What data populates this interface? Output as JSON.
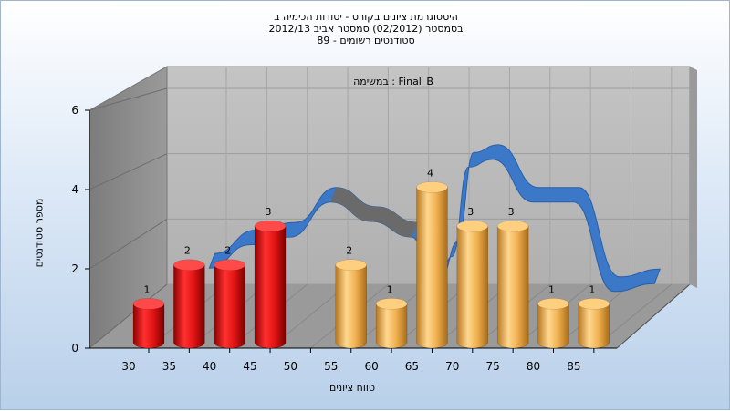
{
  "chart_data": {
    "type": "bar",
    "title_lines": [
      "היסטוגרמת ציונים בקורס - יסודות הכימיה ב",
      "בסמסטר  (02/2012)  סמסטר אביב 2012/13",
      "סטודנטים רשומים - 89"
    ],
    "subtitle": "במשימה : Final_B",
    "xlabel": "טווח ציונים",
    "ylabel": "מספר סטודנטים",
    "x_ticks": [
      "30",
      "35",
      "40",
      "45",
      "50",
      "55",
      "60",
      "65",
      "70",
      "75",
      "80",
      "85"
    ],
    "y_ticks": [
      "0",
      "2",
      "4",
      "6"
    ],
    "ylim": [
      0,
      6
    ],
    "bars": [
      {
        "x": 30,
        "value": 1,
        "label": "1",
        "color": "red"
      },
      {
        "x": 35,
        "value": 2,
        "label": "2",
        "color": "red"
      },
      {
        "x": 40,
        "value": 2,
        "label": "2",
        "color": "red"
      },
      {
        "x": 45,
        "value": 3,
        "label": "3",
        "color": "red"
      },
      {
        "x": 55,
        "value": 2,
        "label": "2",
        "color": "orange"
      },
      {
        "x": 60,
        "value": 1,
        "label": "1",
        "color": "orange"
      },
      {
        "x": 65,
        "value": 4,
        "label": "4",
        "color": "orange"
      },
      {
        "x": 70,
        "value": 3,
        "label": "3",
        "color": "orange"
      },
      {
        "x": 75,
        "value": 3,
        "label": "3",
        "color": "orange"
      },
      {
        "x": 80,
        "value": 1,
        "label": "1",
        "color": "orange"
      },
      {
        "x": 85,
        "value": 1,
        "label": "1",
        "color": "orange"
      }
    ],
    "ribbon": [
      {
        "x": 35,
        "y": 2.2
      },
      {
        "x": 40,
        "y": 2.8
      },
      {
        "x": 45,
        "y": 3.0
      },
      {
        "x": 50,
        "y": 3.9
      },
      {
        "x": 55,
        "y": 3.4
      },
      {
        "x": 60,
        "y": 3.0
      },
      {
        "x": 63,
        "y": 1.6
      },
      {
        "x": 65,
        "y": 2.5
      },
      {
        "x": 67,
        "y": 4.8
      },
      {
        "x": 70,
        "y": 5.0
      },
      {
        "x": 75,
        "y": 3.9
      },
      {
        "x": 80,
        "y": 3.9
      },
      {
        "x": 85,
        "y": 1.6
      },
      {
        "x": 90,
        "y": 1.8
      }
    ],
    "grid": true,
    "legend": "none",
    "colors": {
      "red": "#e01414",
      "orange": "#f0b050",
      "ribbon_blue": "#3b78c8",
      "ribbon_gray": "#6a6a6a",
      "back_wall": "#b8b8b8",
      "side_wall": "#8c8c8c",
      "floor": "#9a9a9a"
    }
  }
}
